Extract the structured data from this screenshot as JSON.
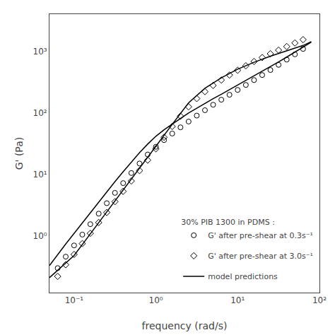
{
  "chart_data": {
    "type": "scatter",
    "xlabel": "frequency (rad/s)",
    "ylabel": "G' (Pa)",
    "annotation": "30% PIB 1300 in PDMS :",
    "log": true,
    "grid": false,
    "legend": "lower right",
    "xlim": [
      0.05,
      100
    ],
    "ylim": [
      0.12,
      4000
    ],
    "xticks": [
      {
        "value": 0.1,
        "label": "10⁻¹"
      },
      {
        "value": 1,
        "label": "10⁰"
      },
      {
        "value": 10,
        "label": "10¹"
      },
      {
        "value": 100,
        "label": "10²"
      }
    ],
    "yticks": [
      {
        "value": 1,
        "label": "10⁰"
      },
      {
        "value": 10,
        "label": "10¹"
      },
      {
        "value": 100,
        "label": "10²"
      },
      {
        "value": 1000,
        "label": "10³"
      }
    ],
    "series": [
      {
        "name": "model predictions",
        "type": "line",
        "line_style": "solid",
        "color": "#000000",
        "x": [
          0.05,
          0.063,
          0.079,
          0.1,
          0.126,
          0.158,
          0.2,
          0.251,
          0.316,
          0.398,
          0.501,
          0.631,
          0.794,
          1.0,
          1.259,
          1.585,
          2.0,
          2.512,
          3.162,
          3.981,
          5.012,
          6.31,
          7.943,
          10.0,
          12.59,
          15.85,
          19.95,
          25.12,
          31.62,
          39.81,
          50.12,
          63.1,
          79.43
        ],
        "values": [
          0.33,
          0.5,
          0.74,
          1.1,
          1.63,
          2.4,
          3.55,
          5.2,
          7.6,
          11.0,
          15.8,
          22.5,
          31.0,
          41.5,
          53.0,
          66.0,
          81.0,
          99.0,
          119.0,
          142.0,
          169.0,
          200.0,
          237.0,
          280.0,
          332.0,
          394.0,
          469.0,
          560.0,
          670.0,
          803.0,
          965.0,
          1160.0,
          1400.0
        ]
      },
      {
        "name": "model predictions",
        "type": "line",
        "line_style": "solid",
        "color": "#000000",
        "x": [
          0.05,
          0.1,
          0.158,
          0.251,
          0.398,
          0.631,
          1.0,
          1.585,
          2.512,
          3.981,
          6.31,
          10.0,
          15.85,
          25.12,
          39.81,
          63.1,
          79.43
        ],
        "values": [
          0.21,
          0.48,
          1.08,
          2.44,
          5.5,
          12.5,
          28.5,
          65.0,
          145.0,
          250.0,
          370.0,
          510.0,
          660.0,
          830.0,
          1020.0,
          1240.0,
          1430.0
        ]
      },
      {
        "name": "G' after pre-shear at 0.3s⁻¹",
        "type": "scatter",
        "marker": "circle-open",
        "color": "#000000",
        "x": [
          0.063,
          0.079,
          0.1,
          0.126,
          0.158,
          0.2,
          0.251,
          0.316,
          0.398,
          0.501,
          0.631,
          0.794,
          1.0,
          1.259,
          1.585,
          2.0,
          2.512,
          3.162,
          3.981,
          5.012,
          6.31,
          7.943,
          10.0,
          12.59,
          15.85,
          19.95,
          25.12,
          31.62,
          39.81,
          50.12,
          63.1
        ],
        "values": [
          0.3,
          0.46,
          0.7,
          1.05,
          1.55,
          2.3,
          3.4,
          5.0,
          7.2,
          10.5,
          15.0,
          21.0,
          28.0,
          36.0,
          46.0,
          58.0,
          72.0,
          90.0,
          110.0,
          135.0,
          163.0,
          196.0,
          235.0,
          283.0,
          340.0,
          410.0,
          495.0,
          600.0,
          730.0,
          890.0,
          1090.0
        ]
      },
      {
        "name": "G' after pre-shear at 3.0s⁻¹",
        "type": "scatter",
        "marker": "diamond-open",
        "color": "#000000",
        "x": [
          0.063,
          0.079,
          0.1,
          0.126,
          0.158,
          0.2,
          0.251,
          0.316,
          0.398,
          0.501,
          0.631,
          0.794,
          1.0,
          1.259,
          1.585,
          2.0,
          2.512,
          3.162,
          3.981,
          5.012,
          6.31,
          7.943,
          10.0,
          12.59,
          15.85,
          19.95,
          25.12,
          31.62,
          39.81,
          50.12,
          63.1
        ],
        "values": [
          0.22,
          0.34,
          0.5,
          0.75,
          1.1,
          1.65,
          2.4,
          3.6,
          5.3,
          7.8,
          11.5,
          17.0,
          26.0,
          40.0,
          60.0,
          88.0,
          125.0,
          170.0,
          220.0,
          278.0,
          340.0,
          410.0,
          490.0,
          580.0,
          680.0,
          790.0,
          910.0,
          1040.0,
          1190.0,
          1360.0,
          1540.0
        ]
      }
    ]
  }
}
